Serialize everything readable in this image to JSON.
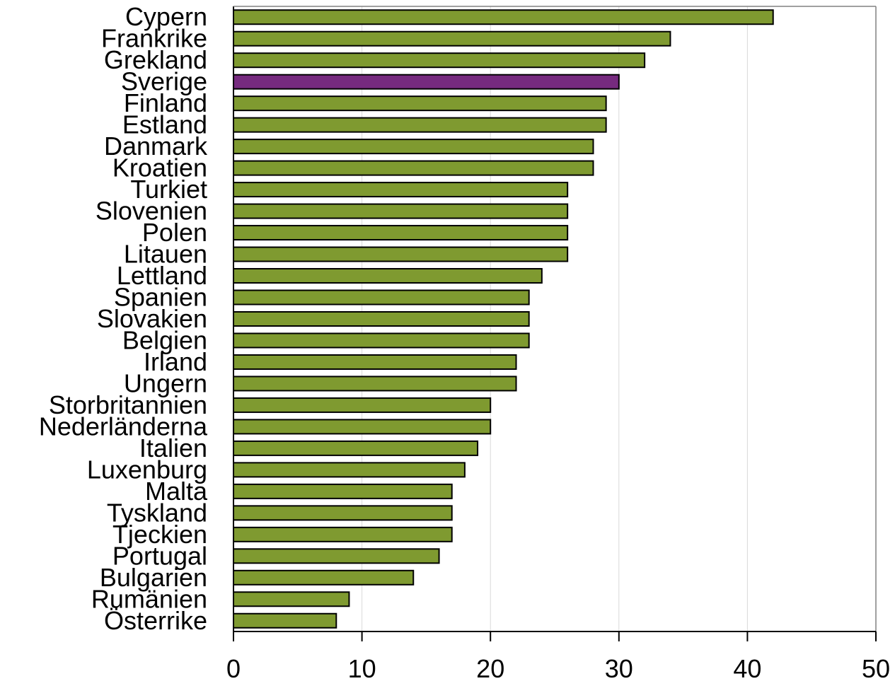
{
  "chart_data": {
    "type": "bar",
    "orientation": "horizontal",
    "categories": [
      "Cypern",
      "Frankrike",
      "Grekland",
      "Sverige",
      "Finland",
      "Estland",
      "Danmark",
      "Kroatien",
      "Turkiet",
      "Slovenien",
      "Polen",
      "Litauen",
      "Lettland",
      "Spanien",
      "Slovakien",
      "Belgien",
      "Irland",
      "Ungern",
      "Storbritannien",
      "Nederländerna",
      "Italien",
      "Luxenburg",
      "Malta",
      "Tyskland",
      "Tjeckien",
      "Portugal",
      "Bulgarien",
      "Rumänien",
      "Österrike"
    ],
    "values": [
      42,
      34,
      32,
      30,
      29,
      29,
      28,
      28,
      26,
      26,
      26,
      26,
      24,
      23,
      23,
      23,
      22,
      22,
      20,
      20,
      19,
      18,
      17,
      17,
      17,
      16,
      14,
      9,
      8
    ],
    "highlight": "Sverige",
    "xlim": [
      0,
      50
    ],
    "xticks": [
      0,
      10,
      20,
      30,
      40,
      50
    ],
    "grid": true,
    "legend": "none",
    "title": "",
    "xlabel": "",
    "ylabel": ""
  },
  "colors": {
    "bar": "#7f9a30",
    "highlight_bar": "#762a7f",
    "bar_outline": "#000000",
    "gridline": "#d9d9d9",
    "axis": "#808080"
  }
}
